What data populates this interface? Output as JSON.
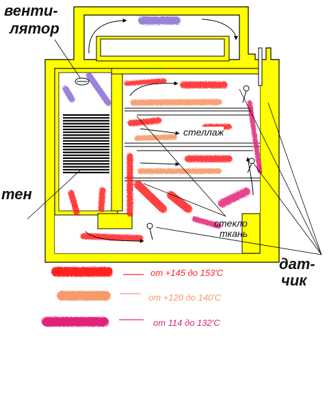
{
  "colors": {
    "frame": "#ffff00",
    "high": "#ff2222",
    "medium": "#f59a6a",
    "low": "#e2247a",
    "fan_air": "#8a6bd6"
  },
  "labels": {
    "fan": [
      "венти-",
      "лятор"
    ],
    "heater": "тен",
    "rack": "стеллаж",
    "fabric": [
      "стекло",
      "ткань"
    ],
    "sensor": [
      "дат-",
      "чик"
    ]
  },
  "legend": [
    {
      "key": "high",
      "text": "от +145 до 153'C"
    },
    {
      "key": "medium",
      "text": "от +120 до 140'C"
    },
    {
      "key": "low",
      "text": "от 114  до 132'C"
    }
  ],
  "icons": [
    "fan-icon",
    "heater-icon",
    "sensor-icon"
  ]
}
